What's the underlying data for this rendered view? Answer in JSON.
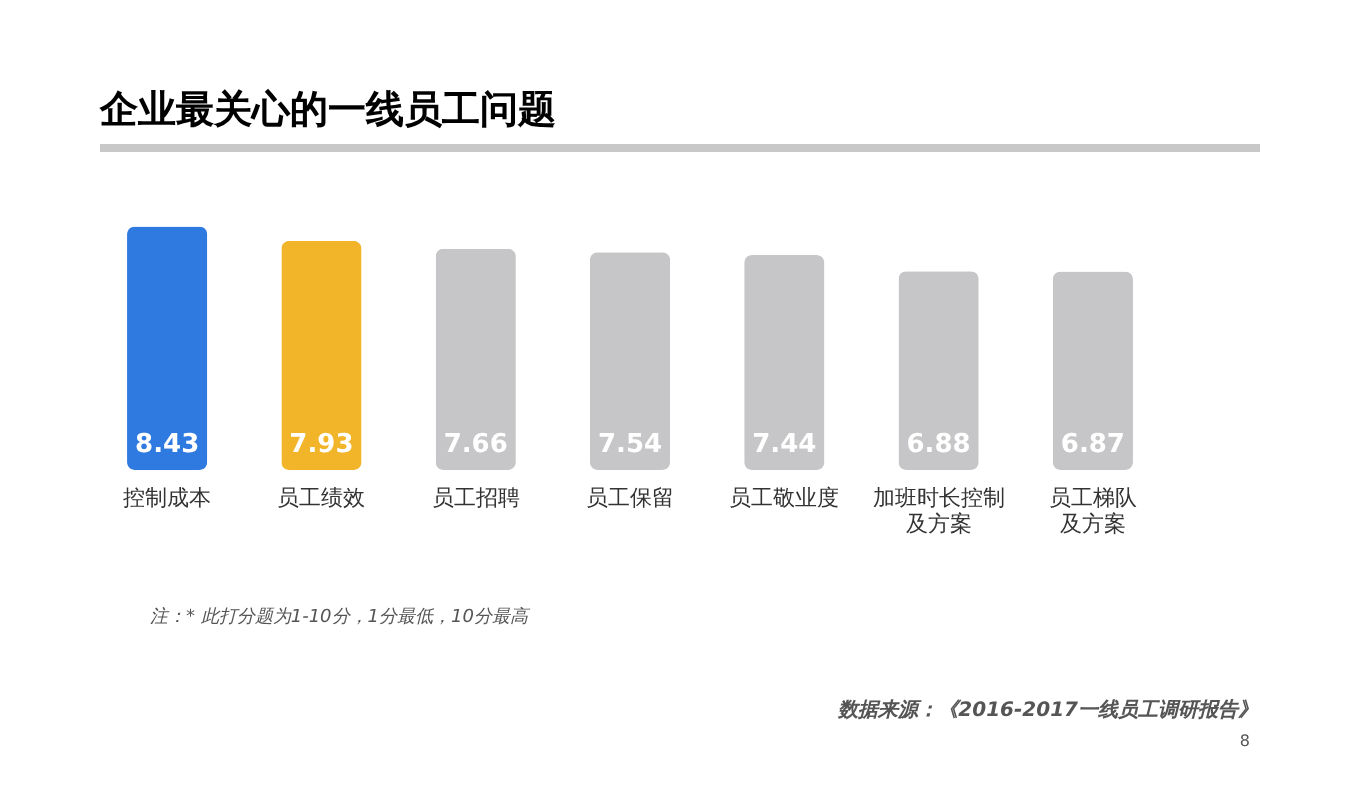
{
  "chart_data": {
    "type": "bar",
    "title": "企业最关心的一线员工问题",
    "categories": [
      "控制成本",
      "员工绩效",
      "员工招聘",
      "员工保留",
      "员工敬业度",
      "加班时长控制及方案",
      "员工梯队及方案"
    ],
    "values": [
      8.43,
      7.93,
      7.66,
      7.54,
      7.44,
      6.88,
      6.87
    ],
    "colors": [
      "#2f7ae0",
      "#f2b428",
      "#c6c6c8",
      "#c6c6c8",
      "#c6c6c8",
      "#c6c6c8",
      "#c6c6c8"
    ],
    "data_labels": true,
    "annotations": [
      "注：* 此打分题为1-10分，1分最低，10分最高",
      "数据来源：《2016-2017一线员工调研报告》",
      "8"
    ]
  }
}
